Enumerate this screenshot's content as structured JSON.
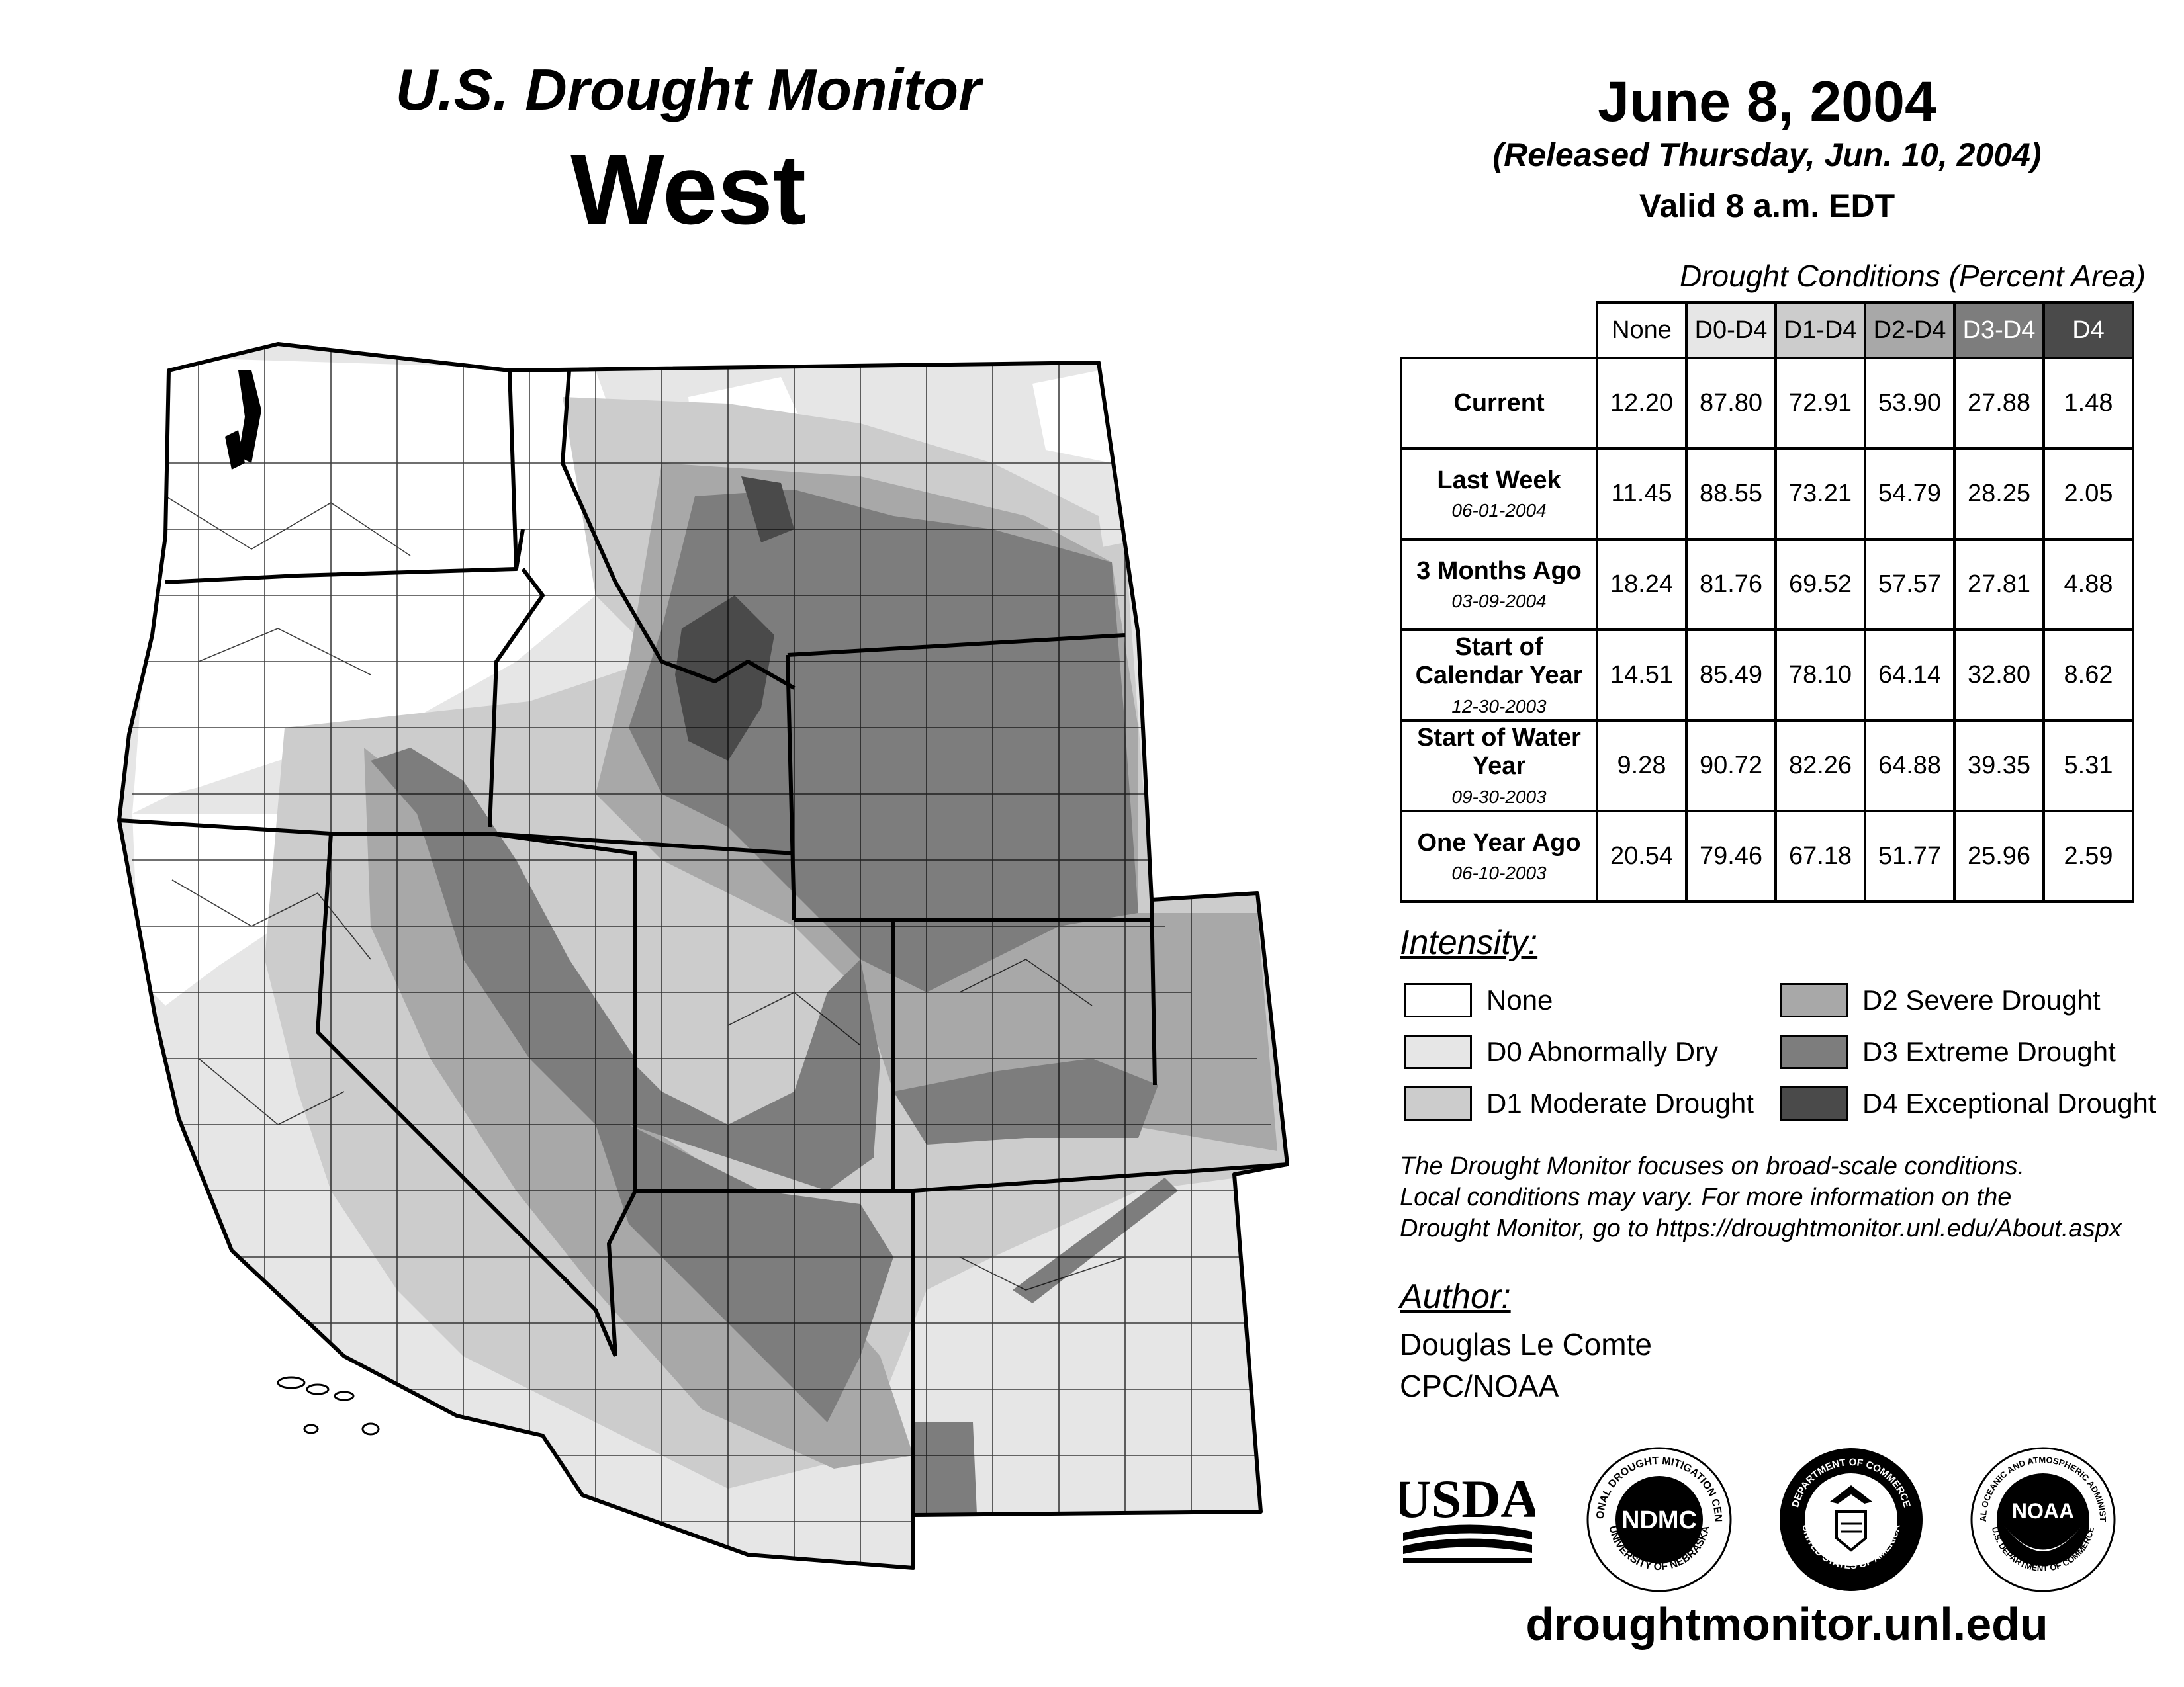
{
  "header": {
    "title": "U.S. Drought Monitor",
    "region": "West",
    "date": "June 8, 2004",
    "released": "(Released Thursday, Jun. 10, 2004)",
    "valid": "Valid 8 a.m. EDT"
  },
  "table": {
    "caption": "Drought Conditions (Percent Area)",
    "columns": [
      "None",
      "D0-D4",
      "D1-D4",
      "D2-D4",
      "D3-D4",
      "D4"
    ],
    "column_colors": [
      "#ffffff",
      "#e6e6e6",
      "#cccccc",
      "#a8a8a8",
      "#7d7d7d",
      "#4a4a4a"
    ],
    "rows": [
      {
        "label": "Current",
        "date": "",
        "values": [
          "12.20",
          "87.80",
          "72.91",
          "53.90",
          "27.88",
          "1.48"
        ]
      },
      {
        "label": "Last Week",
        "date": "06-01-2004",
        "values": [
          "11.45",
          "88.55",
          "73.21",
          "54.79",
          "28.25",
          "2.05"
        ]
      },
      {
        "label": "3 Months Ago",
        "date": "03-09-2004",
        "values": [
          "18.24",
          "81.76",
          "69.52",
          "57.57",
          "27.81",
          "4.88"
        ]
      },
      {
        "label": "Start of Calendar Year",
        "date": "12-30-2003",
        "values": [
          "14.51",
          "85.49",
          "78.10",
          "64.14",
          "32.80",
          "8.62"
        ]
      },
      {
        "label": "Start of Water Year",
        "date": "09-30-2003",
        "values": [
          "9.28",
          "90.72",
          "82.26",
          "64.88",
          "39.35",
          "5.31"
        ]
      },
      {
        "label": "One Year Ago",
        "date": "06-10-2003",
        "values": [
          "20.54",
          "79.46",
          "67.18",
          "51.77",
          "25.96",
          "2.59"
        ]
      }
    ]
  },
  "legend": {
    "title": "Intensity:",
    "items": [
      {
        "label": "None",
        "color": "#ffffff"
      },
      {
        "label": "D0 Abnormally Dry",
        "color": "#e6e6e6"
      },
      {
        "label": "D1 Moderate Drought",
        "color": "#cccccc"
      },
      {
        "label": "D2 Severe Drought",
        "color": "#a8a8a8"
      },
      {
        "label": "D3 Extreme Drought",
        "color": "#7d7d7d"
      },
      {
        "label": "D4 Exceptional Drought",
        "color": "#4a4a4a"
      }
    ]
  },
  "disclaimer": [
    "The Drought Monitor focuses on broad-scale conditions.",
    "Local conditions may vary. For more information on the",
    "Drought Monitor, go to https://droughtmonitor.unl.edu/About.aspx"
  ],
  "author": {
    "title": "Author:",
    "name": "Douglas Le Comte",
    "org": "CPC/NOAA"
  },
  "logos": {
    "usda": "USDA",
    "ndmc": "NDMC",
    "ndmc_ring_top": "NATIONAL DROUGHT MITIGATION CENTER",
    "ndmc_ring_bottom": "UNIVERSITY OF NEBRASKA",
    "doc_ring_top": "DEPARTMENT OF COMMERCE",
    "doc_ring_bottom": "UNITED STATES OF AMERICA",
    "noaa": "NOAA",
    "noaa_ring_top": "NATIONAL OCEANIC AND ATMOSPHERIC ADMINISTRATION",
    "noaa_ring_bottom": "U.S. DEPARTMENT OF COMMERCE"
  },
  "website": "droughtmonitor.unl.edu"
}
